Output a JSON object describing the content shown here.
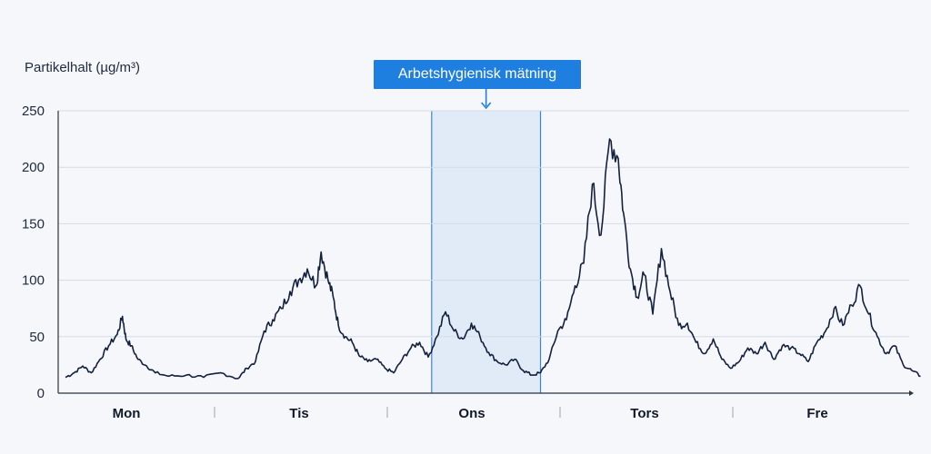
{
  "chart_data": {
    "type": "line",
    "ylabel": "Partikelhalt (µg/m³)",
    "ylim": [
      0,
      250
    ],
    "yticks": [
      0,
      50,
      100,
      150,
      200,
      250
    ],
    "days": [
      "Mon",
      "Tis",
      "Ons",
      "Tors",
      "Fre"
    ],
    "grid": true,
    "highlight": {
      "label": "Arbetshygienisk mätning",
      "day": "Ons",
      "start": 2.12,
      "end": 2.75
    },
    "series": [
      {
        "color": "#14213d",
        "x": [
          0.0,
          0.05,
          0.1,
          0.15,
          0.2,
          0.25,
          0.3,
          0.33,
          0.35,
          0.38,
          0.42,
          0.47,
          0.52,
          0.6,
          0.7,
          0.8,
          0.9,
          1.0,
          1.05,
          1.1,
          1.15,
          1.2,
          1.25,
          1.3,
          1.35,
          1.4,
          1.45,
          1.48,
          1.52,
          1.55,
          1.58,
          1.62,
          1.66,
          1.7,
          1.75,
          1.8,
          1.85,
          1.9,
          1.95,
          2.0,
          2.05,
          2.1,
          2.15,
          2.2,
          2.25,
          2.3,
          2.35,
          2.4,
          2.45,
          2.5,
          2.55,
          2.6,
          2.65,
          2.7,
          2.75,
          2.8,
          2.85,
          2.9,
          2.95,
          3.0,
          3.05,
          3.1,
          3.15,
          3.2,
          3.23,
          3.27,
          3.31,
          3.35,
          3.4,
          3.45,
          3.5,
          3.55,
          3.6,
          3.65,
          3.7,
          3.75,
          3.8,
          3.85,
          3.9,
          3.95,
          4.0,
          4.05,
          4.1,
          4.15,
          4.2,
          4.25,
          4.3,
          4.35,
          4.4,
          4.45,
          4.5,
          4.55,
          4.6,
          4.65,
          4.7,
          4.75,
          4.8,
          4.85,
          4.9,
          4.95
        ],
        "values": [
          14,
          18,
          24,
          18,
          30,
          42,
          52,
          68,
          48,
          42,
          30,
          24,
          18,
          15,
          16,
          14,
          18,
          13,
          22,
          28,
          55,
          65,
          75,
          90,
          100,
          110,
          95,
          125,
          100,
          85,
          60,
          50,
          45,
          33,
          28,
          30,
          22,
          18,
          30,
          40,
          45,
          32,
          50,
          72,
          55,
          48,
          62,
          50,
          36,
          28,
          25,
          30,
          20,
          16,
          18,
          30,
          55,
          65,
          95,
          115,
          185,
          140,
          225,
          208,
          160,
          110,
          85,
          105,
          70,
          128,
          90,
          60,
          62,
          45,
          35,
          48,
          30,
          22,
          28,
          40,
          35,
          45,
          30,
          42,
          40,
          35,
          28,
          45,
          55,
          75,
          60,
          78,
          95,
          70,
          50,
          35,
          42,
          25,
          20,
          15
        ]
      }
    ]
  }
}
